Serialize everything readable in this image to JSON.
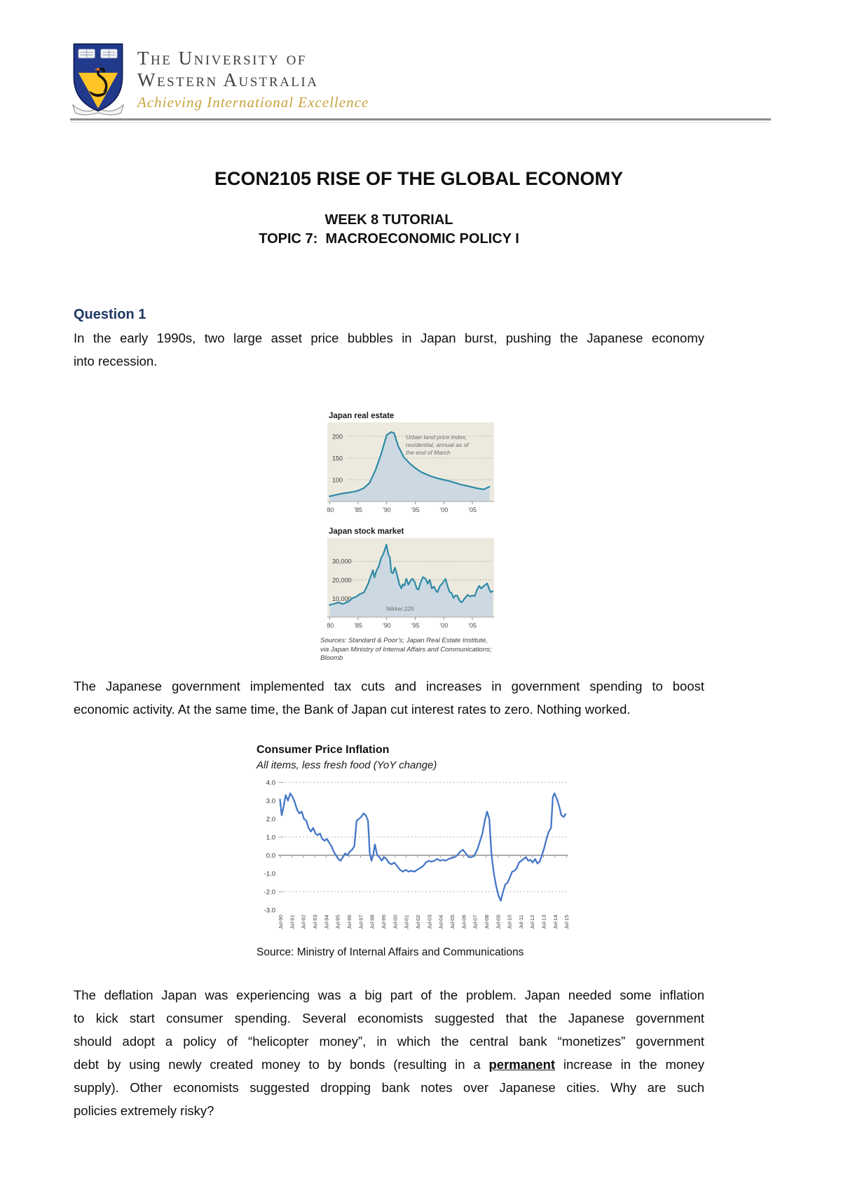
{
  "colors": {
    "heading_accent": "#1f3864",
    "tagline_gold": "#c7a33c",
    "chart_bg": "#eceadf",
    "chart_fill": "#ccd9e2",
    "chart_line": "#2f8aa6",
    "cpi_line": "#4577c6"
  },
  "header": {
    "name_line1": "The University of",
    "name_line2": "Western Australia",
    "tagline": "Achieving International Excellence"
  },
  "title_block": {
    "course_title": "ECON2105 RISE OF THE GLOBAL ECONOMY",
    "week": "WEEK 8 TUTORIAL",
    "topic": "TOPIC 7:  MACROECONOMIC POLICY I"
  },
  "question1": {
    "heading": "Question 1",
    "lines": [
      "In the early 1990s, two large asset price bubbles in Japan burst, pushing the Japanese economy",
      "into recession."
    ]
  },
  "figure1": {
    "sources_line1": "Sources: Standard & Poor’s; Japan Real Estate Institute,",
    "sources_line2": "via Japan Ministry of Internal Affairs and Communications; Bloomb"
  },
  "paragraph2": {
    "lines": [
      "The Japanese government implemented tax cuts and increases in government spending to boost",
      "economic activity. At the same time, the Bank of Japan cut interest rates to zero. Nothing worked."
    ]
  },
  "paragraph3": {
    "lines": [
      "The deflation Japan was experiencing was a big part of the problem. Japan needed some inflation",
      "to kick start consumer spending. Several economists suggested that the Japanese government",
      "should adopt a policy of “helicopter money”, in which the central bank “monetizes” government",
      {
        "before": "debt by using newly created money to by bonds (resulting in a ",
        "emphasis": "permanent",
        "after": " increase in the money"
      },
      "supply). Other economists suggested dropping bank notes over Japanese cities. Why are such",
      "policies extremely risky?"
    ]
  },
  "chart_data": [
    {
      "type": "area",
      "title": "Japan real estate",
      "annotation_lines": [
        "Urban land price index,",
        "residential, annual as of",
        "the end of March"
      ],
      "annotation_pos": [
        112,
        24
      ],
      "xlim": [
        1979.6,
        2008.8
      ],
      "ylim": [
        50,
        232
      ],
      "yticks": [
        {
          "value": 200,
          "label": "200"
        },
        {
          "value": 150,
          "label": "150"
        },
        {
          "value": 100,
          "label": "100"
        }
      ],
      "xticks": [
        {
          "value": 1980,
          "label": "’80"
        },
        {
          "value": 1985,
          "label": "’85"
        },
        {
          "value": 1990,
          "label": "’90"
        },
        {
          "value": 1995,
          "label": "’95"
        },
        {
          "value": 2000,
          "label": "’00"
        },
        {
          "value": 2005,
          "label": "’05"
        }
      ],
      "points": [
        [
          1980,
          62
        ],
        [
          1981,
          65
        ],
        [
          1982,
          68
        ],
        [
          1983,
          70
        ],
        [
          1984,
          72
        ],
        [
          1985,
          75
        ],
        [
          1986,
          81
        ],
        [
          1987,
          93
        ],
        [
          1988,
          121
        ],
        [
          1989,
          158
        ],
        [
          1990,
          203
        ],
        [
          1990.8,
          210
        ],
        [
          1991.3,
          207
        ],
        [
          1992,
          178
        ],
        [
          1993,
          152
        ],
        [
          1994,
          138
        ],
        [
          1995,
          127
        ],
        [
          1996,
          118
        ],
        [
          1997,
          112
        ],
        [
          1998,
          107
        ],
        [
          1999,
          103
        ],
        [
          2000,
          100
        ],
        [
          2001,
          97
        ],
        [
          2002,
          93
        ],
        [
          2003,
          89
        ],
        [
          2004,
          86
        ],
        [
          2005,
          83
        ],
        [
          2006,
          80
        ],
        [
          2007,
          78
        ],
        [
          2008,
          84
        ]
      ]
    },
    {
      "type": "area",
      "title": "Japan stock market",
      "annotation_lines": [
        "Nikkei 225"
      ],
      "annotation_pos": [
        84,
        104
      ],
      "xlim": [
        1979.6,
        2008.8
      ],
      "ylim": [
        0,
        42500
      ],
      "yticks": [
        {
          "value": 30000,
          "label": "30,000"
        },
        {
          "value": 20000,
          "label": "20,000"
        },
        {
          "value": 10000,
          "label": "10,000"
        }
      ],
      "xticks": [
        {
          "value": 1980,
          "label": "’80"
        },
        {
          "value": 1985,
          "label": "’85"
        },
        {
          "value": 1990,
          "label": "’90"
        },
        {
          "value": 1995,
          "label": "’95"
        },
        {
          "value": 2000,
          "label": "’00"
        },
        {
          "value": 2005,
          "label": "’05"
        }
      ],
      "points": [
        [
          1980,
          6500
        ],
        [
          1980.4,
          6900
        ],
        [
          1980.8,
          7100
        ],
        [
          1981.2,
          7600
        ],
        [
          1981.6,
          7900
        ],
        [
          1982,
          7300
        ],
        [
          1982.4,
          7100
        ],
        [
          1982.8,
          7700
        ],
        [
          1983.2,
          8200
        ],
        [
          1983.6,
          9100
        ],
        [
          1984,
          10200
        ],
        [
          1984.4,
          10600
        ],
        [
          1984.8,
          11200
        ],
        [
          1985.2,
          12200
        ],
        [
          1985.6,
          12700
        ],
        [
          1986,
          13200
        ],
        [
          1986.4,
          15600
        ],
        [
          1986.8,
          18300
        ],
        [
          1987.2,
          21800
        ],
        [
          1987.6,
          25200
        ],
        [
          1987.85,
          21300
        ],
        [
          1988.2,
          24800
        ],
        [
          1988.6,
          27300
        ],
        [
          1989,
          31500
        ],
        [
          1989.4,
          33800
        ],
        [
          1989.95,
          38900
        ],
        [
          1990.3,
          33500
        ],
        [
          1990.55,
          32200
        ],
        [
          1990.8,
          24100
        ],
        [
          1991.1,
          23600
        ],
        [
          1991.45,
          26600
        ],
        [
          1991.8,
          22900
        ],
        [
          1992.2,
          17800
        ],
        [
          1992.55,
          15400
        ],
        [
          1992.8,
          17600
        ],
        [
          1993.1,
          16900
        ],
        [
          1993.45,
          20600
        ],
        [
          1993.8,
          17400
        ],
        [
          1994.2,
          19700
        ],
        [
          1994.5,
          20600
        ],
        [
          1994.9,
          18900
        ],
        [
          1995.25,
          15400
        ],
        [
          1995.55,
          14700
        ],
        [
          1995.9,
          18400
        ],
        [
          1996.35,
          21500
        ],
        [
          1996.8,
          20600
        ],
        [
          1997.2,
          17900
        ],
        [
          1997.55,
          20100
        ],
        [
          1997.9,
          15400
        ],
        [
          1998.3,
          16400
        ],
        [
          1998.65,
          14100
        ],
        [
          1998.9,
          13400
        ],
        [
          1999.3,
          16600
        ],
        [
          1999.7,
          17900
        ],
        [
          2000.05,
          19600
        ],
        [
          2000.3,
          20500
        ],
        [
          2000.7,
          16200
        ],
        [
          2001,
          13600
        ],
        [
          2001.35,
          12900
        ],
        [
          2001.7,
          10300
        ],
        [
          2002,
          11600
        ],
        [
          2002.35,
          11500
        ],
        [
          2002.75,
          8900
        ],
        [
          2003.1,
          7900
        ],
        [
          2003.45,
          9100
        ],
        [
          2003.8,
          10600
        ],
        [
          2004.2,
          11900
        ],
        [
          2004.6,
          11100
        ],
        [
          2005,
          11600
        ],
        [
          2005.4,
          11300
        ],
        [
          2005.8,
          14600
        ],
        [
          2006.2,
          16800
        ],
        [
          2006.5,
          15400
        ],
        [
          2006.9,
          16400
        ],
        [
          2007.3,
          17400
        ],
        [
          2007.6,
          18100
        ],
        [
          2007.9,
          15400
        ],
        [
          2008.2,
          13400
        ],
        [
          2008.55,
          13900
        ]
      ]
    },
    {
      "type": "line",
      "title": "Consumer Price Inflation",
      "subtitle": "All items, less fresh food (YoY change)",
      "source": "Source: Ministry of Internal Affairs and Communications",
      "xlim": [
        1990.35,
        2015.65
      ],
      "ylim": [
        -3,
        4
      ],
      "yticks": [
        {
          "value": 4,
          "label": "4.0"
        },
        {
          "value": 3,
          "label": "3.0"
        },
        {
          "value": 2,
          "label": "2.0"
        },
        {
          "value": 1,
          "label": "1.0"
        },
        {
          "value": 0,
          "label": "0.0"
        },
        {
          "value": -1,
          "label": "-1.0"
        },
        {
          "value": -2,
          "label": "-2.0"
        },
        {
          "value": -3,
          "label": "-3.0"
        }
      ],
      "dashed_grid": [
        4,
        1,
        -2
      ],
      "xtick_labels": [
        "Jul-90",
        "Jul-91",
        "Jul-92",
        "Jul-93",
        "Jul-94",
        "Jul-95",
        "Jul-96",
        "Jul-97",
        "Jul-98",
        "Jul-99",
        "Jul-00",
        "Jul-01",
        "Jul-02",
        "Jul-03",
        "Jul-04",
        "Jul-05",
        "Jul-06",
        "Jul-07",
        "Jul-08",
        "Jul-09",
        "Jul-10",
        "Jul-11",
        "Jul-12",
        "Jul-13",
        "Jul-14",
        "Jul-15"
      ],
      "points": [
        [
          1990.5,
          3.1
        ],
        [
          1990.65,
          2.2
        ],
        [
          1990.8,
          2.6
        ],
        [
          1991,
          3.3
        ],
        [
          1991.2,
          3.0
        ],
        [
          1991.4,
          3.4
        ],
        [
          1991.6,
          3.2
        ],
        [
          1991.8,
          2.9
        ],
        [
          1992,
          2.5
        ],
        [
          1992.2,
          2.3
        ],
        [
          1992.4,
          2.4
        ],
        [
          1992.6,
          2.0
        ],
        [
          1992.8,
          1.9
        ],
        [
          1993,
          1.5
        ],
        [
          1993.2,
          1.3
        ],
        [
          1993.4,
          1.5
        ],
        [
          1993.6,
          1.2
        ],
        [
          1993.8,
          1.1
        ],
        [
          1994,
          1.2
        ],
        [
          1994.2,
          0.9
        ],
        [
          1994.4,
          0.8
        ],
        [
          1994.6,
          0.9
        ],
        [
          1994.8,
          0.7
        ],
        [
          1995,
          0.5
        ],
        [
          1995.2,
          0.2
        ],
        [
          1995.4,
          0.0
        ],
        [
          1995.6,
          -0.2
        ],
        [
          1995.8,
          -0.3
        ],
        [
          1996,
          -0.1
        ],
        [
          1996.2,
          0.1
        ],
        [
          1996.4,
          0.0
        ],
        [
          1996.6,
          0.2
        ],
        [
          1996.8,
          0.3
        ],
        [
          1997,
          0.5
        ],
        [
          1997.2,
          1.9
        ],
        [
          1997.4,
          2.0
        ],
        [
          1997.6,
          2.1
        ],
        [
          1997.8,
          2.3
        ],
        [
          1998,
          2.2
        ],
        [
          1998.2,
          1.9
        ],
        [
          1998.35,
          0.1
        ],
        [
          1998.5,
          -0.3
        ],
        [
          1998.65,
          0.0
        ],
        [
          1998.8,
          0.6
        ],
        [
          1999,
          0.0
        ],
        [
          1999.2,
          -0.1
        ],
        [
          1999.4,
          -0.3
        ],
        [
          1999.6,
          -0.1
        ],
        [
          1999.8,
          -0.2
        ],
        [
          2000,
          -0.4
        ],
        [
          2000.25,
          -0.5
        ],
        [
          2000.5,
          -0.4
        ],
        [
          2000.75,
          -0.6
        ],
        [
          2001,
          -0.8
        ],
        [
          2001.25,
          -0.9
        ],
        [
          2001.5,
          -0.8
        ],
        [
          2001.75,
          -0.9
        ],
        [
          2002,
          -0.85
        ],
        [
          2002.25,
          -0.9
        ],
        [
          2002.5,
          -0.8
        ],
        [
          2002.75,
          -0.7
        ],
        [
          2003,
          -0.6
        ],
        [
          2003.25,
          -0.4
        ],
        [
          2003.5,
          -0.3
        ],
        [
          2003.75,
          -0.35
        ],
        [
          2004,
          -0.3
        ],
        [
          2004.25,
          -0.2
        ],
        [
          2004.5,
          -0.3
        ],
        [
          2004.75,
          -0.25
        ],
        [
          2005,
          -0.3
        ],
        [
          2005.25,
          -0.2
        ],
        [
          2005.5,
          -0.15
        ],
        [
          2005.75,
          -0.1
        ],
        [
          2006,
          0.0
        ],
        [
          2006.25,
          0.2
        ],
        [
          2006.5,
          0.3
        ],
        [
          2006.75,
          0.1
        ],
        [
          2007,
          -0.1
        ],
        [
          2007.25,
          -0.1
        ],
        [
          2007.5,
          0.0
        ],
        [
          2007.75,
          0.3
        ],
        [
          2008,
          0.8
        ],
        [
          2008.2,
          1.2
        ],
        [
          2008.4,
          1.9
        ],
        [
          2008.6,
          2.4
        ],
        [
          2008.8,
          2.0
        ],
        [
          2009,
          0.0
        ],
        [
          2009.2,
          -1.0
        ],
        [
          2009.4,
          -1.7
        ],
        [
          2009.6,
          -2.2
        ],
        [
          2009.8,
          -2.5
        ],
        [
          2010,
          -2.0
        ],
        [
          2010.2,
          -1.6
        ],
        [
          2010.4,
          -1.5
        ],
        [
          2010.6,
          -1.2
        ],
        [
          2010.8,
          -0.9
        ],
        [
          2011,
          -0.85
        ],
        [
          2011.2,
          -0.7
        ],
        [
          2011.4,
          -0.4
        ],
        [
          2011.6,
          -0.3
        ],
        [
          2011.8,
          -0.2
        ],
        [
          2012,
          -0.1
        ],
        [
          2012.2,
          -0.3
        ],
        [
          2012.4,
          -0.25
        ],
        [
          2012.6,
          -0.4
        ],
        [
          2012.8,
          -0.2
        ],
        [
          2013,
          -0.45
        ],
        [
          2013.2,
          -0.35
        ],
        [
          2013.4,
          0.0
        ],
        [
          2013.6,
          0.4
        ],
        [
          2013.8,
          0.9
        ],
        [
          2014,
          1.3
        ],
        [
          2014.2,
          1.5
        ],
        [
          2014.35,
          3.2
        ],
        [
          2014.5,
          3.4
        ],
        [
          2014.7,
          3.1
        ],
        [
          2014.9,
          2.7
        ],
        [
          2015.1,
          2.2
        ],
        [
          2015.3,
          2.1
        ],
        [
          2015.5,
          2.3
        ]
      ]
    }
  ]
}
